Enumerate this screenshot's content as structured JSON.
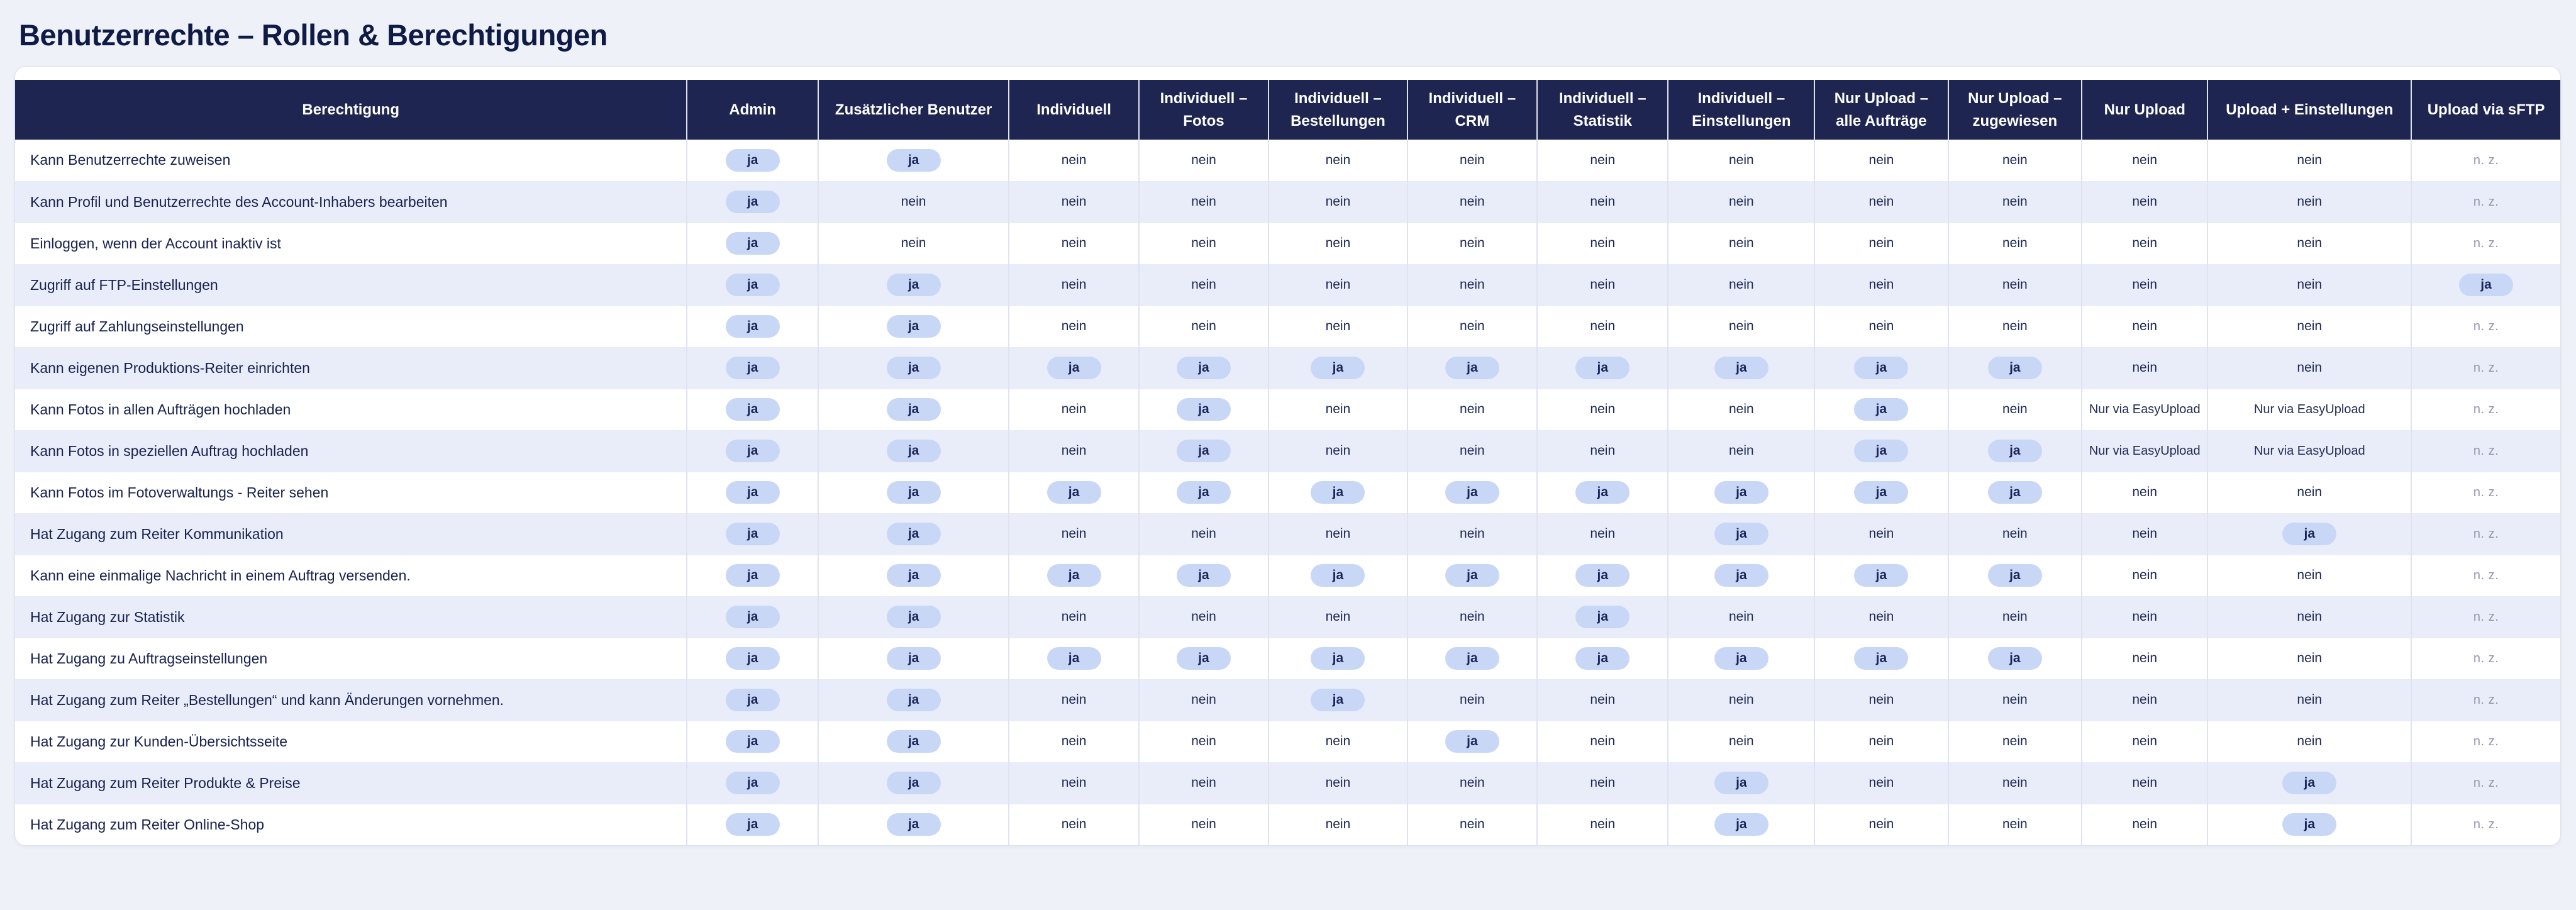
{
  "page": {
    "title": "Benutzerrechte – Rollen & Berechtigungen"
  },
  "colors": {
    "page_bg": "#eef1f8",
    "header_bg": "#1f2551",
    "row_alt": "#e9edf9",
    "pill_bg": "#c9d7f7",
    "pill_text": "#1b2557",
    "na_text": "#9096a8"
  },
  "table": {
    "columns": [
      "Berechtigung",
      "Admin",
      "Zusätzlicher Benutzer",
      "Individuell",
      "Individuell – Fotos",
      "Individuell – Bestellungen",
      "Individuell – CRM",
      "Individuell – Statistik",
      "Individuell – Einstellungen",
      "Nur Upload – alle Aufträge",
      "Nur Upload – zugewiesen",
      "Nur Upload",
      "Upload + Einstellungen",
      "Upload via sFTP"
    ],
    "value_labels": {
      "yes": "ja",
      "no": "nein",
      "not_applicable": "n. z.",
      "easy_upload": "Nur via EasyUpload"
    },
    "rows": [
      {
        "label": "Kann Benutzerrechte zuweisen",
        "values": [
          "ja",
          "ja",
          "nein",
          "nein",
          "nein",
          "nein",
          "nein",
          "nein",
          "nein",
          "nein",
          "nein",
          "nein",
          "n. z."
        ]
      },
      {
        "label": "Kann Profil und Benutzerrechte des Account-Inhabers bearbeiten",
        "values": [
          "ja",
          "nein",
          "nein",
          "nein",
          "nein",
          "nein",
          "nein",
          "nein",
          "nein",
          "nein",
          "nein",
          "nein",
          "n. z."
        ]
      },
      {
        "label": "Einloggen, wenn der Account inaktiv ist",
        "values": [
          "ja",
          "nein",
          "nein",
          "nein",
          "nein",
          "nein",
          "nein",
          "nein",
          "nein",
          "nein",
          "nein",
          "nein",
          "n. z."
        ]
      },
      {
        "label": "Zugriff auf FTP-Einstellungen",
        "values": [
          "ja",
          "ja",
          "nein",
          "nein",
          "nein",
          "nein",
          "nein",
          "nein",
          "nein",
          "nein",
          "nein",
          "nein",
          "ja"
        ]
      },
      {
        "label": "Zugriff auf Zahlungseinstellungen",
        "values": [
          "ja",
          "ja",
          "nein",
          "nein",
          "nein",
          "nein",
          "nein",
          "nein",
          "nein",
          "nein",
          "nein",
          "nein",
          "n. z."
        ]
      },
      {
        "label": "Kann eigenen Produktions-Reiter einrichten",
        "values": [
          "ja",
          "ja",
          "ja",
          "ja",
          "ja",
          "ja",
          "ja",
          "ja",
          "ja",
          "ja",
          "nein",
          "nein",
          "n. z."
        ]
      },
      {
        "label": "Kann Fotos in allen Aufträgen hochladen",
        "values": [
          "ja",
          "ja",
          "nein",
          "ja",
          "nein",
          "nein",
          "nein",
          "nein",
          "ja",
          "nein",
          "Nur via EasyUpload",
          "Nur via EasyUpload",
          "n. z."
        ]
      },
      {
        "label": "Kann Fotos in speziellen Auftrag hochladen",
        "values": [
          "ja",
          "ja",
          "nein",
          "ja",
          "nein",
          "nein",
          "nein",
          "nein",
          "ja",
          "ja",
          "Nur via EasyUpload",
          "Nur via EasyUpload",
          "n. z."
        ]
      },
      {
        "label": "Kann Fotos im Fotoverwaltungs - Reiter sehen",
        "values": [
          "ja",
          "ja",
          "ja",
          "ja",
          "ja",
          "ja",
          "ja",
          "ja",
          "ja",
          "ja",
          "nein",
          "nein",
          "n. z."
        ]
      },
      {
        "label": "Hat Zugang zum Reiter Kommunikation",
        "values": [
          "ja",
          "ja",
          "nein",
          "nein",
          "nein",
          "nein",
          "nein",
          "ja",
          "nein",
          "nein",
          "nein",
          "ja",
          "n. z."
        ]
      },
      {
        "label": "Kann eine einmalige Nachricht in einem Auftrag versenden.",
        "values": [
          "ja",
          "ja",
          "ja",
          "ja",
          "ja",
          "ja",
          "ja",
          "ja",
          "ja",
          "ja",
          "nein",
          "nein",
          "n. z."
        ]
      },
      {
        "label": "Hat Zugang zur Statistik",
        "values": [
          "ja",
          "ja",
          "nein",
          "nein",
          "nein",
          "nein",
          "ja",
          "nein",
          "nein",
          "nein",
          "nein",
          "nein",
          "n. z."
        ]
      },
      {
        "label": "Hat Zugang zu Auftragseinstellungen",
        "values": [
          "ja",
          "ja",
          "ja",
          "ja",
          "ja",
          "ja",
          "ja",
          "ja",
          "ja",
          "ja",
          "nein",
          "nein",
          "n. z."
        ]
      },
      {
        "label": "Hat Zugang zum Reiter „Bestellungen“ und kann Änderungen vornehmen.",
        "values": [
          "ja",
          "ja",
          "nein",
          "nein",
          "ja",
          "nein",
          "nein",
          "nein",
          "nein",
          "nein",
          "nein",
          "nein",
          "n. z."
        ]
      },
      {
        "label": "Hat Zugang zur Kunden-Übersichtsseite",
        "values": [
          "ja",
          "ja",
          "nein",
          "nein",
          "nein",
          "ja",
          "nein",
          "nein",
          "nein",
          "nein",
          "nein",
          "nein",
          "n. z."
        ]
      },
      {
        "label": "Hat Zugang zum Reiter Produkte & Preise",
        "values": [
          "ja",
          "ja",
          "nein",
          "nein",
          "nein",
          "nein",
          "nein",
          "ja",
          "nein",
          "nein",
          "nein",
          "ja",
          "n. z."
        ]
      },
      {
        "label": "Hat Zugang zum Reiter Online-Shop",
        "values": [
          "ja",
          "ja",
          "nein",
          "nein",
          "nein",
          "nein",
          "nein",
          "ja",
          "nein",
          "nein",
          "nein",
          "ja",
          "n. z."
        ]
      }
    ]
  }
}
